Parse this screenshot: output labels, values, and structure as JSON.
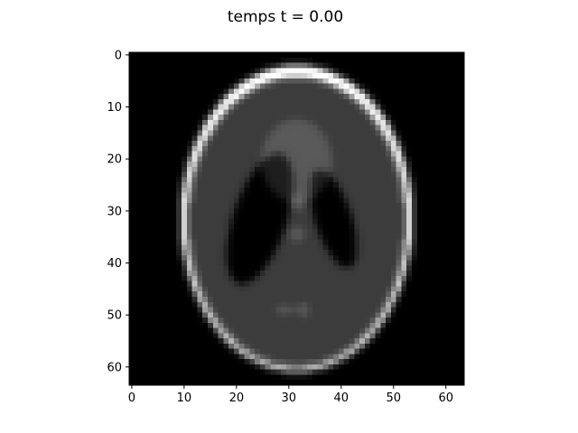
{
  "chart_data": {
    "type": "heatmap",
    "title": "temps t = 0.00",
    "xlabel": "",
    "ylabel": "",
    "image_shape": [
      64,
      64
    ],
    "colormap": "gray",
    "xlim": [
      -0.5,
      63.5
    ],
    "ylim": [
      63.5,
      -0.5
    ],
    "xticks": [
      0,
      10,
      20,
      30,
      40,
      50,
      60
    ],
    "xtick_labels": [
      "0",
      "10",
      "20",
      "30",
      "40",
      "50",
      "60"
    ],
    "yticks": [
      0,
      10,
      20,
      30,
      40,
      50,
      60
    ],
    "ytick_labels": [
      "0",
      "10",
      "20",
      "30",
      "40",
      "50",
      "60"
    ],
    "grid": false,
    "content": "Shepp-Logan phantom",
    "phantom_ellipses": [
      {
        "intensity": 1.0,
        "center": [
          31.5,
          31.5
        ],
        "semi_axes": [
          22.1,
          29.4
        ],
        "rotation_deg": 0
      },
      {
        "intensity": -0.8,
        "center": [
          31.5,
          32.1
        ],
        "semi_axes": [
          21.0,
          28.0
        ],
        "rotation_deg": 0
      },
      {
        "intensity": -0.2,
        "center": [
          38.5,
          31.5
        ],
        "semi_axes": [
          3.5,
          9.8
        ],
        "rotation_deg": -18
      },
      {
        "intensity": -0.2,
        "center": [
          24.5,
          31.5
        ],
        "semi_axes": [
          5.1,
          13.1
        ],
        "rotation_deg": 18
      },
      {
        "intensity": 0.1,
        "center": [
          31.5,
          20.3
        ],
        "semi_axes": [
          6.7,
          8.0
        ],
        "rotation_deg": 0
      },
      {
        "intensity": 0.1,
        "center": [
          31.5,
          28.5
        ],
        "semi_axes": [
          1.5,
          1.5
        ],
        "rotation_deg": 0
      },
      {
        "intensity": 0.1,
        "center": [
          31.5,
          34.5
        ],
        "semi_axes": [
          1.5,
          1.5
        ],
        "rotation_deg": 0
      },
      {
        "intensity": 0.1,
        "center": [
          29.0,
          49.0
        ],
        "semi_axes": [
          1.5,
          0.8
        ],
        "rotation_deg": 0
      },
      {
        "intensity": 0.1,
        "center": [
          31.5,
          49.0
        ],
        "semi_axes": [
          0.8,
          0.8
        ],
        "rotation_deg": 0
      },
      {
        "intensity": 0.1,
        "center": [
          33.0,
          49.0
        ],
        "semi_axes": [
          0.8,
          1.5
        ],
        "rotation_deg": 0
      }
    ],
    "blur_sigma": 0.6
  }
}
